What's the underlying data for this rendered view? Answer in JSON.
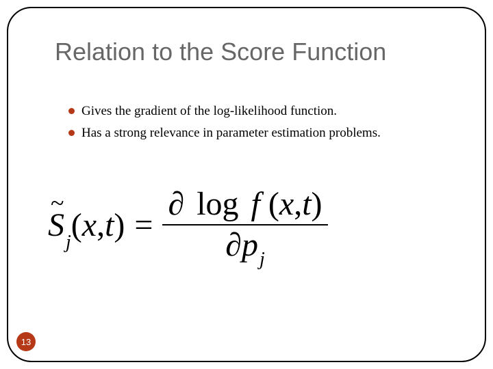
{
  "slide": {
    "title": "Relation to the Score Function",
    "bullets": [
      "Gives the gradient of the log-likelihood function.",
      "Has a strong relevance in parameter estimation problems."
    ],
    "equation": {
      "lhs_symbol": "S",
      "lhs_tilde": "~",
      "lhs_sub": "j",
      "lhs_args_open": "(",
      "lhs_arg1": "x",
      "lhs_comma": ",",
      "lhs_arg2": "t",
      "lhs_args_close": ")",
      "equals": "=",
      "num_partial": "∂",
      "num_log": "log",
      "num_f": "f",
      "num_args_open": "(",
      "num_arg1": "x",
      "num_comma": ",",
      "num_arg2": "t",
      "num_args_close": ")",
      "den_partial": "∂",
      "den_p": "p",
      "den_sub": "j"
    },
    "page_number": "13"
  },
  "style": {
    "accent_color": "#b53917",
    "title_color": "#676767",
    "text_color": "#000000",
    "background": "#ffffff",
    "title_fontsize": 36,
    "bullet_fontsize": 19,
    "equation_fontsize": 48,
    "border_radius": 36,
    "border_color": "#000000"
  }
}
